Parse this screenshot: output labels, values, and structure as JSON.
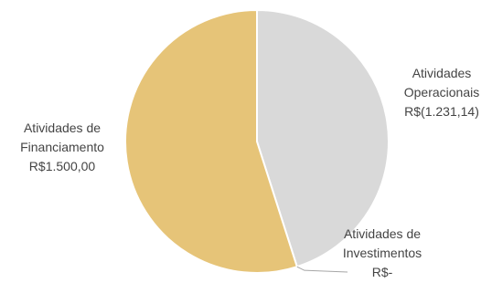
{
  "chart_data": {
    "type": "pie",
    "slices": [
      {
        "category": "Atividades Operacionais",
        "value": 1231.14,
        "signed_value": -1231.14,
        "label_lines": [
          "Atividades",
          "Operacionais",
          "R$(1.231,14)"
        ],
        "color": "#d9d9d9"
      },
      {
        "category": "Atividades de Investimentos",
        "value": 0,
        "signed_value": 0,
        "label_lines": [
          "Atividades de",
          "Investimentos",
          "R$-"
        ],
        "color": "#bfbfbf"
      },
      {
        "category": "Atividades de Financiamento",
        "value": 1500.0,
        "signed_value": 1500.0,
        "label_lines": [
          "Atividades de",
          "Financiamento",
          "R$1.500,00"
        ],
        "color": "#e6c478"
      }
    ],
    "start_angle_deg": 0,
    "direction": "clockwise",
    "leader_line_color": "#a6a6a6"
  }
}
